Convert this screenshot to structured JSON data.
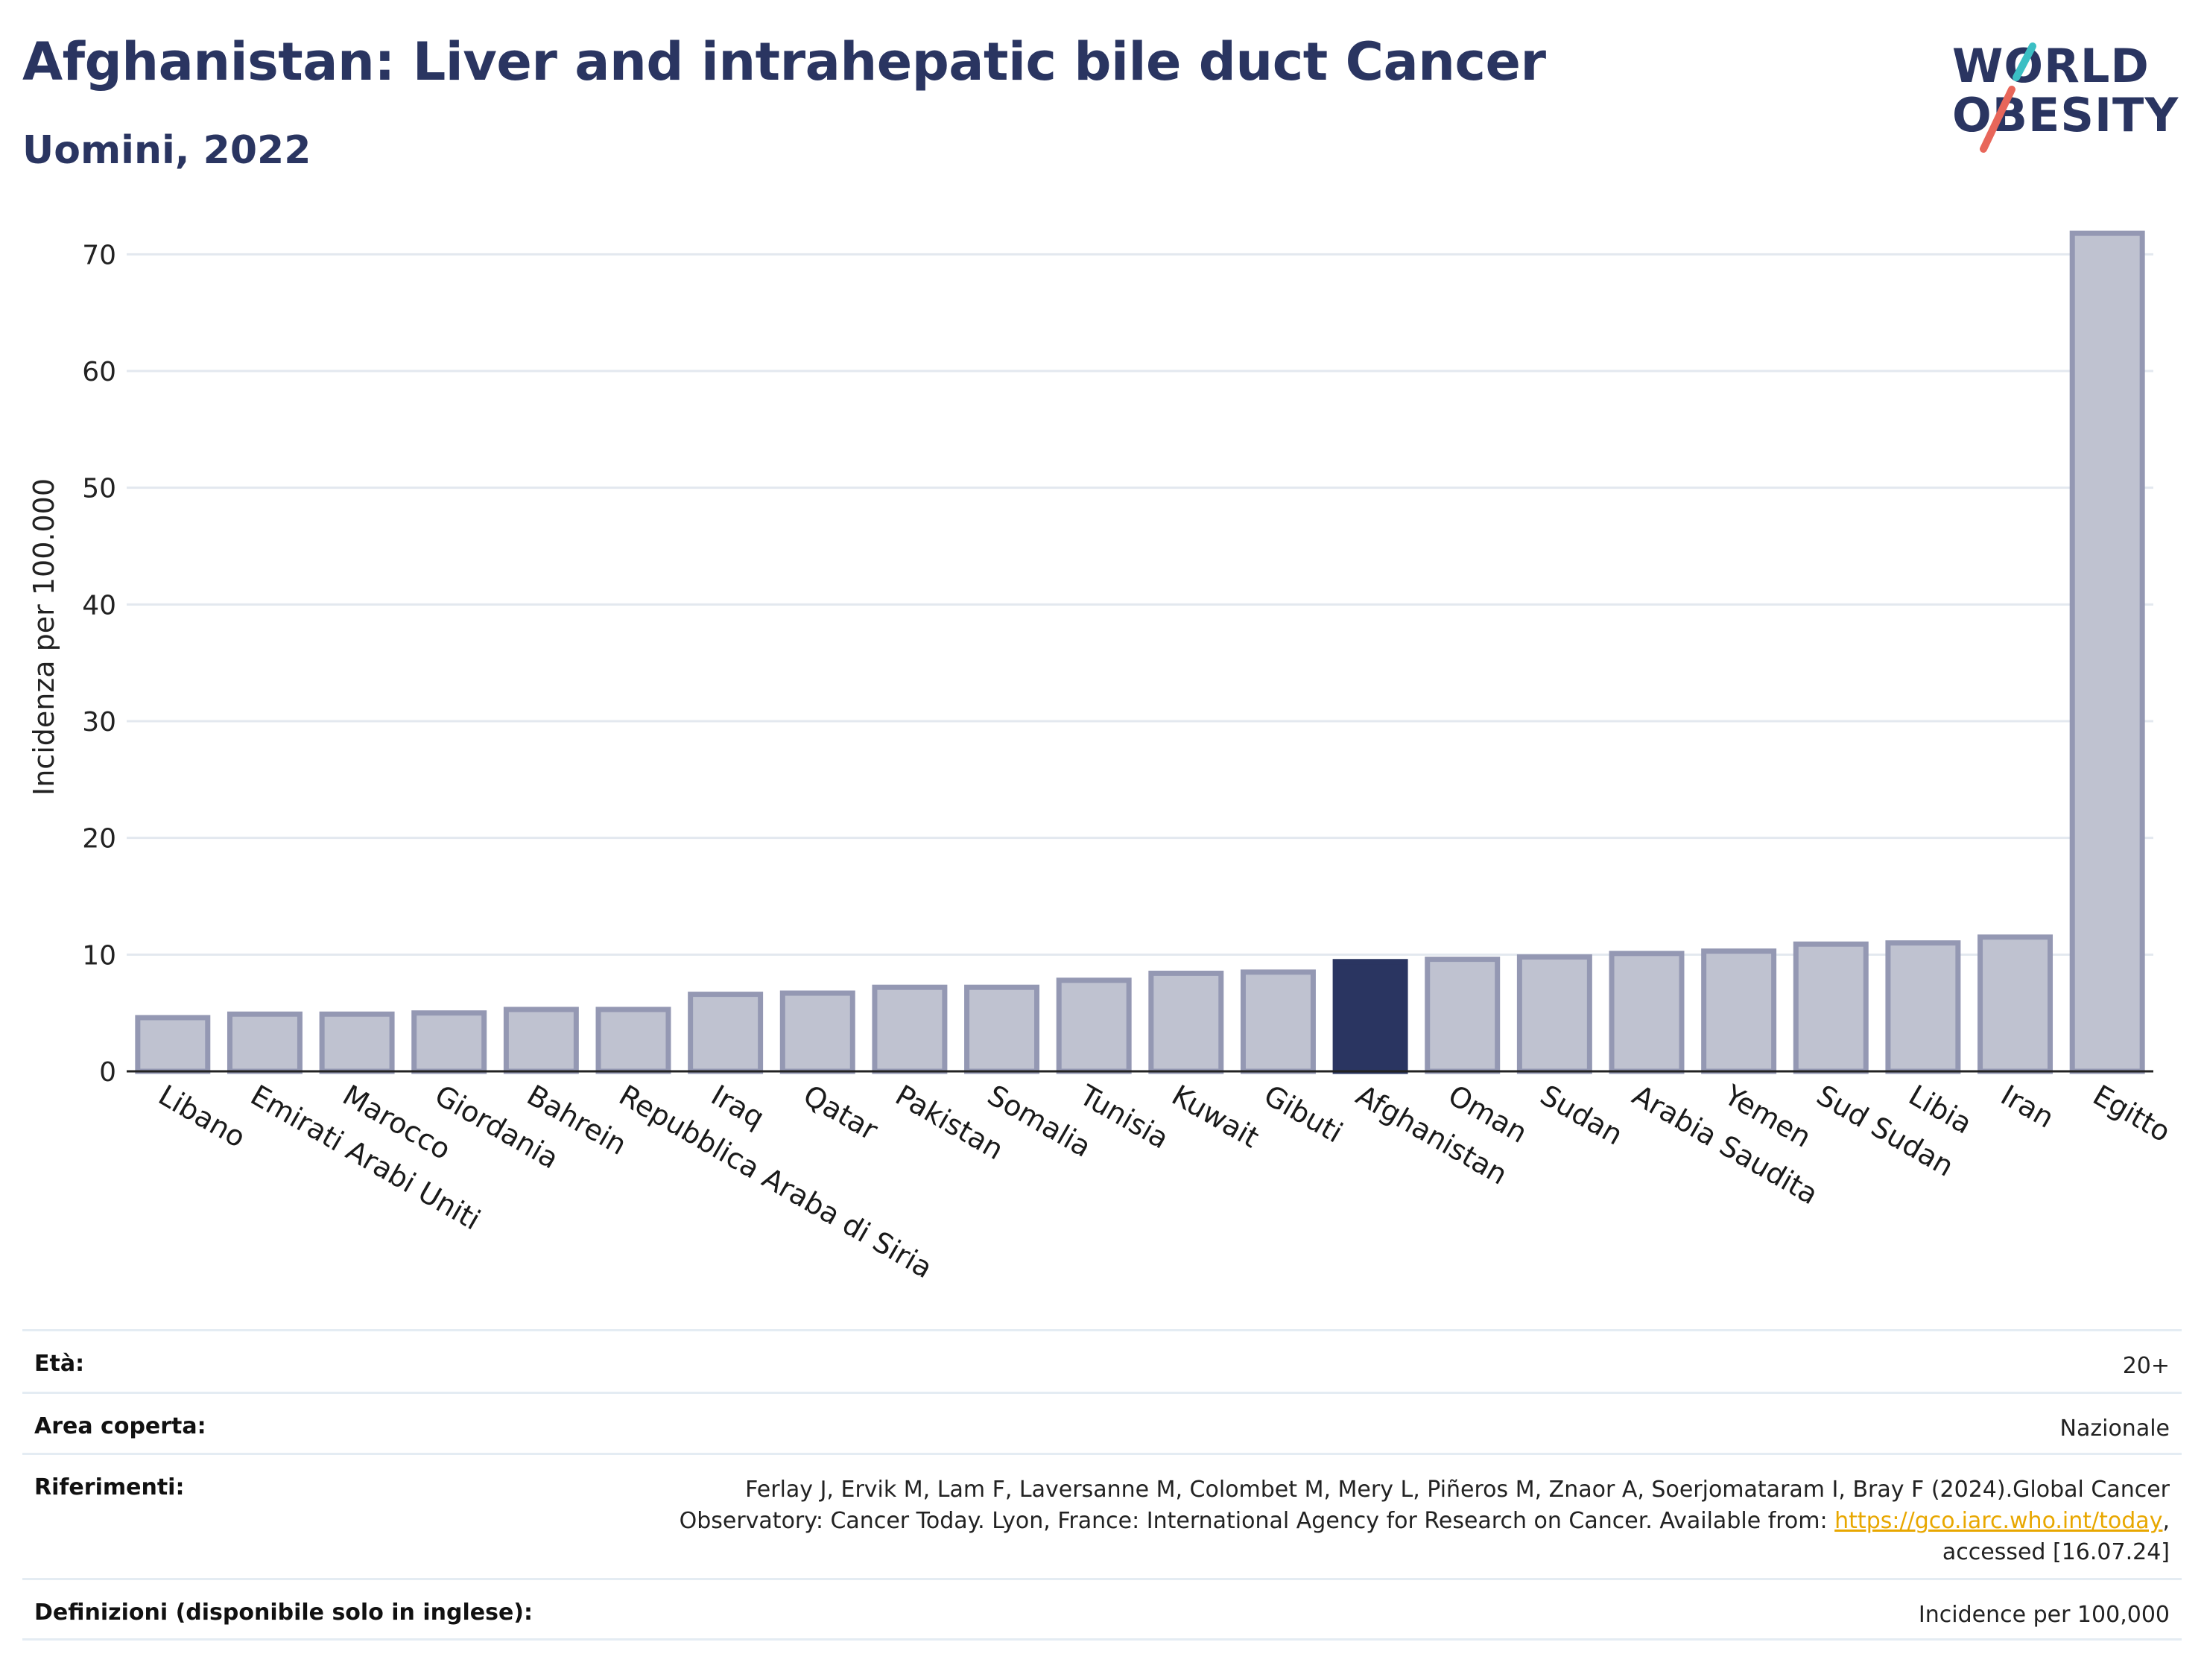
{
  "header": {
    "title": "Afghanistan: Liver and intrahepatic bile duct Cancer",
    "subtitle": "Uomini, 2022"
  },
  "logo": {
    "line1": "WORLD",
    "line2": "OBESITY",
    "colors": {
      "text": "#2a3561",
      "slash_top": "#3bbfc4",
      "slash_bottom": "#e8665a"
    }
  },
  "colors": {
    "bar": "#bfc2d0",
    "bar_border": "#9498b3",
    "bar_highlight": "#2a3561",
    "grid": "#e3e8ef",
    "axis": "#222222"
  },
  "chart_data": {
    "type": "bar",
    "ylabel": "Incidenza per 100.000",
    "ylim": [
      0,
      72
    ],
    "yticks": [
      0,
      10,
      20,
      30,
      40,
      50,
      60,
      70
    ],
    "grid": true,
    "highlight": "Afghanistan",
    "categories": [
      "Libano",
      "Emirati Arabi Uniti",
      "Marocco",
      "Giordania",
      "Bahrein",
      "Repubblica Araba di Siria",
      "Iraq",
      "Qatar",
      "Pakistan",
      "Somalia",
      "Tunisia",
      "Kuwait",
      "Gibuti",
      "Afghanistan",
      "Oman",
      "Sudan",
      "Arabia Saudita",
      "Yemen",
      "Sud Sudan",
      "Libia",
      "Iran",
      "Egitto"
    ],
    "values": [
      4.6,
      4.9,
      4.9,
      5.0,
      5.3,
      5.3,
      6.6,
      6.7,
      7.2,
      7.2,
      7.8,
      8.4,
      8.5,
      9.4,
      9.6,
      9.8,
      10.1,
      10.3,
      10.9,
      11.0,
      11.5,
      71.8
    ]
  },
  "info": {
    "age": {
      "label": "Età:",
      "value": "20+"
    },
    "area": {
      "label": "Area coperta:",
      "value": "Nazionale"
    },
    "references": {
      "label": "Riferimenti:",
      "line1": "Ferlay J, Ervik M, Lam F, Laversanne M, Colombet M, Mery L, Piñeros M, Znaor A, Soerjomataram I, Bray F (2024).Global Cancer",
      "line2_pre": "Observatory: Cancer Today. Lyon, France: International Agency for Research on Cancer. Available from: ",
      "link": "https://gco.iarc.who.int/today",
      "line2_post": ",",
      "line3": "accessed [16.07.24]"
    },
    "definitions": {
      "label": "Definizioni (disponibile solo in inglese):",
      "value": "Incidence per 100,000"
    }
  }
}
